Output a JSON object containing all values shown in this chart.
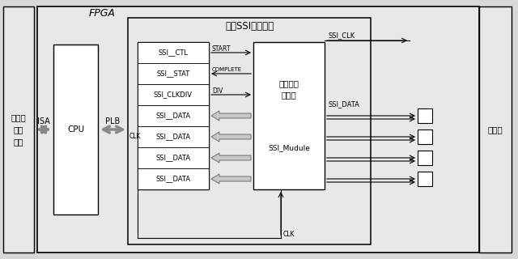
{
  "bg_color": "#d8d8d8",
  "box_fill": "#e8e8e8",
  "white": "#ffffff",
  "black": "#000000",
  "gray_arrow": "#b0b0b0",
  "title": "FPGA",
  "host_label": "上位机\n控制\n单元",
  "isa_label": "ISA",
  "cpu_label": "CPU",
  "plb_label": "PLB",
  "multi_ssi_label": "多路SSI采集单元",
  "data_collect_line1": "数据采集",
  "data_collect_line2": "子单元",
  "ssi_module_label": "SSI_Mudule",
  "encoder_label": "编码器",
  "ssi_clk_label": "SSI_CLK",
  "ssi_data_label": "SSI_DATA",
  "clk_label": "CLK",
  "register_labels": [
    "SSI__CTL",
    "SSI__STAT",
    "SSI_CLKDIV",
    "SSI__DATA",
    "SSI__DATA",
    "SSI__DATA",
    "SSI__DATA"
  ],
  "signal_r0": "START",
  "signal_r1": "COMPLETE",
  "signal_r2": "DIV"
}
